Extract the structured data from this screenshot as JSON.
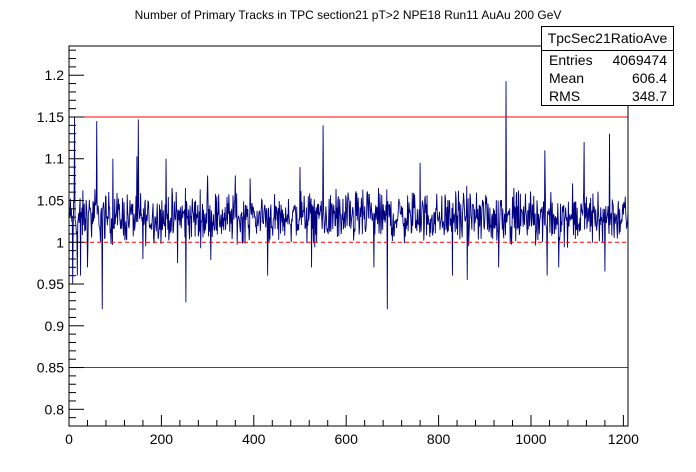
{
  "chart_data": {
    "type": "line",
    "title": "Number of Primary Tracks in TPC section21 pT>2 NPE18 Run11 AuAu 200 GeV",
    "xlabel": "",
    "ylabel": "",
    "xlim": [
      0,
      1210
    ],
    "ylim": [
      0.78,
      1.235
    ],
    "x_ticks": [
      "0",
      "200",
      "400",
      "600",
      "800",
      "1000",
      "1200"
    ],
    "y_ticks": [
      "0.8",
      "0.85",
      "0.9",
      "0.95",
      "1",
      "1.05",
      "1.1",
      "1.15",
      "1.2"
    ],
    "x_tick_values": [
      0,
      200,
      400,
      600,
      800,
      1000,
      1200
    ],
    "y_tick_values": [
      0.8,
      0.85,
      0.9,
      0.95,
      1.0,
      1.05,
      1.1,
      1.15,
      1.2
    ],
    "grid": false,
    "series": [
      {
        "color": "#000080",
        "baseline": 1.03,
        "noise_amplitude": 0.018,
        "x_start": 1,
        "x_end": 1210,
        "spikes": [
          {
            "x": 8,
            "y": 0.95
          },
          {
            "x": 12,
            "y": 1.15
          },
          {
            "x": 18,
            "y": 0.96
          },
          {
            "x": 25,
            "y": 0.96
          },
          {
            "x": 40,
            "y": 0.97
          },
          {
            "x": 60,
            "y": 1.145
          },
          {
            "x": 72,
            "y": 0.92
          },
          {
            "x": 95,
            "y": 1.1
          },
          {
            "x": 150,
            "y": 1.147
          },
          {
            "x": 160,
            "y": 0.98
          },
          {
            "x": 210,
            "y": 1.1
          },
          {
            "x": 235,
            "y": 0.975
          },
          {
            "x": 253,
            "y": 0.928
          },
          {
            "x": 300,
            "y": 1.08
          },
          {
            "x": 360,
            "y": 1.08
          },
          {
            "x": 430,
            "y": 0.96
          },
          {
            "x": 500,
            "y": 1.09
          },
          {
            "x": 525,
            "y": 0.97
          },
          {
            "x": 550,
            "y": 1.14
          },
          {
            "x": 660,
            "y": 0.97
          },
          {
            "x": 689,
            "y": 0.92
          },
          {
            "x": 760,
            "y": 1.095
          },
          {
            "x": 830,
            "y": 0.96
          },
          {
            "x": 862,
            "y": 0.955
          },
          {
            "x": 930,
            "y": 0.97
          },
          {
            "x": 946,
            "y": 1.193
          },
          {
            "x": 1030,
            "y": 1.11
          },
          {
            "x": 1035,
            "y": 0.96
          },
          {
            "x": 1060,
            "y": 0.97
          },
          {
            "x": 1115,
            "y": 1.12
          },
          {
            "x": 1160,
            "y": 0.965
          },
          {
            "x": 1170,
            "y": 1.13
          }
        ]
      }
    ],
    "reference_lines": [
      {
        "y": 1.15,
        "color": "#ff0000",
        "style": "solid"
      },
      {
        "y": 1.0,
        "color": "#ff0000",
        "style": "dashed"
      },
      {
        "y": 0.85,
        "color": "#ff0000",
        "style": "solid"
      }
    ]
  },
  "stats_box": {
    "title": "TpcSec21RatioAve",
    "rows": [
      {
        "label": "Entries",
        "value": "4069474"
      },
      {
        "label": "Mean",
        "value": "606.4"
      },
      {
        "label": "RMS",
        "value": "348.7"
      }
    ]
  }
}
